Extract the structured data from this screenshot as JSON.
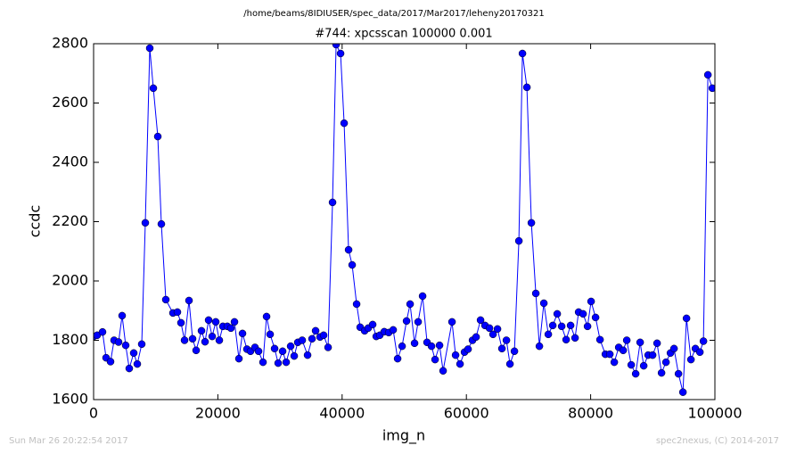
{
  "header": "/home/beams/8IDIUSER/spec_data/2017/Mar2017/leheny20170321",
  "footer_left": "Sun Mar 26 20:22:54 2017",
  "footer_right": "spec2nexus, (C) 2014-2017",
  "chart_data": {
    "type": "line",
    "title": "#744: xpcsscan 100000 0.001",
    "xlabel": "img_n",
    "ylabel": "ccdc",
    "xlim": [
      0,
      100000
    ],
    "xticks": [
      0,
      20000,
      40000,
      60000,
      80000,
      100000
    ],
    "ylim": [
      1600,
      2800
    ],
    "yticks": [
      1600,
      1800,
      2000,
      2200,
      2400,
      2600,
      2800
    ],
    "x": [
      0,
      574,
      1435,
      2009,
      2726,
      3300,
      4018,
      4592,
      5166,
      5740,
      6458,
      7032,
      7749,
      8323,
      9041,
      9615,
      10332,
      10906,
      11624,
      12772,
      13489,
      14063,
      14637,
      15355,
      15929,
      16503,
      17364,
      17938,
      18512,
      19086,
      19660,
      20234,
      20808,
      21525,
      22099,
      22673,
      23391,
      23965,
      24682,
      25256,
      25974,
      26548,
      27265,
      27839,
      28413,
      29131,
      29705,
      30422,
      30996,
      31714,
      32288,
      32862,
      33579,
      34440,
      35158,
      35732,
      36449,
      37023,
      37741,
      38458,
      39032,
      39750,
      40324,
      41041,
      41615,
      42333,
      42907,
      43624,
      44198,
      44916,
      45490,
      46064,
      46781,
      47499,
      48216,
      48934,
      49651,
      50369,
      50943,
      51660,
      52234,
      52952,
      53669,
      54387,
      54961,
      55678,
      56252,
      57687,
      58261,
      58979,
      59696,
      60270,
      60988,
      61562,
      62279,
      62997,
      63714,
      64288,
      65006,
      65723,
      66441,
      67015,
      67732,
      68450,
      69024,
      69741,
      70459,
      71176,
      71750,
      72468,
      73185,
      73903,
      74620,
      75338,
      76055,
      76773,
      77490,
      78064,
      78782,
      79499,
      80073,
      80791,
      81508,
      82369,
      83087,
      83804,
      84522,
      85239,
      85813,
      86531,
      87248,
      87966,
      88540,
      89257,
      89975,
      90692,
      91410,
      92127,
      92845,
      93419,
      94136,
      94854,
      95428,
      96145,
      96863,
      97580,
      98154,
      98872,
      99589
    ],
    "series": [
      {
        "name": "ccdc",
        "color": "#0000ff",
        "values": [
          1813,
          1817,
          1828,
          1741,
          1728,
          1800,
          1794,
          1883,
          1783,
          1705,
          1757,
          1720,
          1787,
          2196,
          2785,
          2650,
          2487,
          2192,
          1937,
          1892,
          1895,
          1859,
          1800,
          1934,
          1805,
          1766,
          1832,
          1795,
          1868,
          1813,
          1862,
          1800,
          1847,
          1847,
          1841,
          1862,
          1738,
          1823,
          1770,
          1763,
          1776,
          1763,
          1726,
          1880,
          1820,
          1772,
          1723,
          1763,
          1726,
          1780,
          1747,
          1793,
          1800,
          1750,
          1805,
          1832,
          1811,
          1817,
          1776,
          2265,
          2797,
          2767,
          2532,
          2105,
          2054,
          1922,
          1844,
          1832,
          1841,
          1853,
          1813,
          1817,
          1829,
          1826,
          1835,
          1738,
          1780,
          1865,
          1922,
          1790,
          1862,
          1949,
          1793,
          1780,
          1735,
          1783,
          1697,
          1862,
          1750,
          1720,
          1760,
          1770,
          1800,
          1811,
          1868,
          1850,
          1841,
          1820,
          1838,
          1772,
          1800,
          1720,
          1763,
          2135,
          2767,
          2653,
          2196,
          1958,
          1780,
          1925,
          1820,
          1850,
          1889,
          1847,
          1802,
          1850,
          1808,
          1895,
          1889,
          1847,
          1931,
          1877,
          1802,
          1753,
          1753,
          1726,
          1776,
          1766,
          1800,
          1717,
          1687,
          1793,
          1714,
          1750,
          1750,
          1790,
          1690,
          1726,
          1757,
          1772,
          1687,
          1625,
          1874,
          1735,
          1772,
          1760,
          1797,
          2695,
          2650
        ]
      }
    ]
  }
}
